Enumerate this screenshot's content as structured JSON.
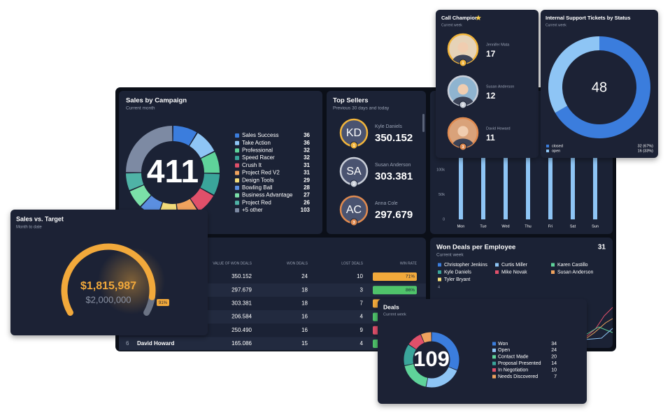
{
  "sales_by_campaign": {
    "title": "Sales by Campaign",
    "subtitle": "Current month",
    "total": 411,
    "items": [
      {
        "name": "Sales Success",
        "value": 36,
        "color": "#3b7ddd"
      },
      {
        "name": "Take Action",
        "value": 36,
        "color": "#8ec5f5"
      },
      {
        "name": "Professional",
        "value": 32,
        "color": "#5fd39a"
      },
      {
        "name": "Speed Racer",
        "value": 32,
        "color": "#3aa59a"
      },
      {
        "name": "Crush It",
        "value": 31,
        "color": "#e0506a"
      },
      {
        "name": "Project Red V2",
        "value": 31,
        "color": "#f0a35e"
      },
      {
        "name": "Design Tools",
        "value": 29,
        "color": "#f3dc7a"
      },
      {
        "name": "Bowling Ball",
        "value": 28,
        "color": "#5b8fe0"
      },
      {
        "name": "Business Advantage",
        "value": 27,
        "color": "#7be0a8"
      },
      {
        "name": "Project Red",
        "value": 26,
        "color": "#4fb3a6"
      },
      {
        "name": "+5 other",
        "value": 103,
        "color": "#7d8aa3"
      }
    ]
  },
  "top_sellers": {
    "title": "Top Sellers",
    "subtitle": "Previous 30 days and today",
    "sellers": [
      {
        "initials": "KD",
        "name": "Kyle Daniels",
        "amount": "350.152",
        "rank": 1,
        "ring": "#f2b53b"
      },
      {
        "initials": "SA",
        "name": "Susan Anderson",
        "amount": "303.381",
        "rank": 2,
        "ring": "#c9ced8"
      },
      {
        "initials": "AC",
        "name": "Anna Cole",
        "amount": "297.679",
        "rank": 3,
        "ring": "#e08a4f"
      }
    ]
  },
  "daily_chart": {
    "yticks": [
      "100k",
      "50k",
      "0"
    ],
    "days": [
      "Mon",
      "Tue",
      "Wed",
      "Thu",
      "Fri",
      "Sat",
      "Sun"
    ]
  },
  "deals_table": {
    "columns": [
      "VALUE OF WON DEALS",
      "WON DEALS",
      "LOST DEALS",
      "WIN RATE"
    ],
    "rows": [
      {
        "value": "350.152",
        "won": 24,
        "lost": 10,
        "win_rate": "71%",
        "color": "#f2a93b"
      },
      {
        "value": "297.679",
        "won": 18,
        "lost": 3,
        "win_rate": "86%",
        "color": "#4fc36a"
      },
      {
        "value": "303.381",
        "won": 18,
        "lost": 7
      },
      {
        "value": "206.584",
        "won": 16,
        "lost": 4
      },
      {
        "value": "250.490",
        "won": 16,
        "lost": 9
      },
      {
        "rank": 6,
        "name": "David Howard",
        "value": "165.086",
        "won": 15,
        "lost": 4
      }
    ]
  },
  "won_deals_per_employee": {
    "title": "Won Deals per Employee",
    "total": 31,
    "subtitle": "Current week",
    "ytick": 4,
    "employees": [
      {
        "name": "Christopher Jenkins",
        "color": "#3b7ddd"
      },
      {
        "name": "Curtis Miller",
        "color": "#8ec5f5"
      },
      {
        "name": "Karen Castillo",
        "color": "#5fd39a"
      },
      {
        "name": "Kyle Daniels",
        "color": "#3aa59a"
      },
      {
        "name": "Mike Novak",
        "color": "#e0506a"
      },
      {
        "name": "Susan Anderson",
        "color": "#f0a35e"
      },
      {
        "name": "Tyler Bryant",
        "color": "#f3dc7a"
      }
    ]
  },
  "sales_vs_target": {
    "title": "Sales vs. Target",
    "subtitle": "Month to date",
    "value": "$1,815,987",
    "target": "$2,000,000",
    "percent": {
      "value": 91,
      "label": "91%"
    }
  },
  "call_champion": {
    "title": "Call Champion",
    "subtitle": "Current week",
    "people": [
      {
        "name": "Jennifer Mata",
        "calls": 17,
        "rank": 1,
        "ring": "#f2b53b",
        "photo": "#e6d3b8"
      },
      {
        "name": "Susan Anderson",
        "calls": 12,
        "rank": 2,
        "ring": "#c9ced8",
        "photo": "#8fb4d0"
      },
      {
        "name": "David Howard",
        "calls": 11,
        "rank": 3,
        "ring": "#e08a4f",
        "photo": "#d9a27a"
      }
    ]
  },
  "support_tickets": {
    "title": "Internal Support Tickets by Status",
    "subtitle": "Current week",
    "total": 48,
    "statuses": [
      {
        "name": "closed",
        "value": 32,
        "label": "32 (67%)",
        "color": "#3b7ddd"
      },
      {
        "name": "open",
        "value": 16,
        "label": "16 (33%)",
        "color": "#8ec5f5"
      }
    ]
  },
  "deals": {
    "title": "Deals",
    "subtitle": "Current week",
    "total": 109,
    "stages": [
      {
        "name": "Won",
        "value": 34,
        "color": "#3b7ddd"
      },
      {
        "name": "Open",
        "value": 24,
        "color": "#8ec5f5"
      },
      {
        "name": "Contact Made",
        "value": 20,
        "color": "#5fd39a"
      },
      {
        "name": "Proposal Presented",
        "value": 14,
        "color": "#3aa59a"
      },
      {
        "name": "In Negotiation",
        "value": 10,
        "color": "#e0506a"
      },
      {
        "name": "Needs Discovered",
        "value": 7,
        "color": "#f0a35e"
      }
    ]
  }
}
